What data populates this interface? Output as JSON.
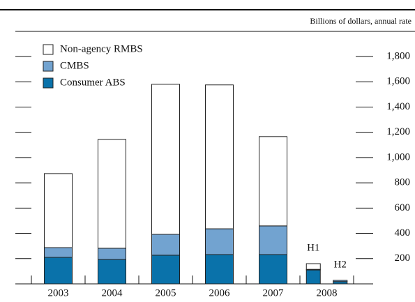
{
  "chart_data": {
    "type": "stacked_bar",
    "subtitle": "Billions of dollars, annual rate",
    "categories": [
      "2003",
      "2004",
      "2005",
      "2006",
      "2007",
      "H1",
      "H2"
    ],
    "x_group_label": "2008",
    "series": [
      {
        "name": "Non-agency RMBS",
        "color": "#ffffff",
        "values": [
          586,
          862,
          1188,
          1139,
          707,
          45,
          0
        ]
      },
      {
        "name": "CMBS",
        "color": "#72a3d0",
        "values": [
          77,
          89,
          165,
          204,
          227,
          5,
          10
        ]
      },
      {
        "name": "Consumer ABS",
        "color": "#0a72aa",
        "values": [
          210,
          193,
          227,
          232,
          232,
          110,
          18
        ]
      }
    ],
    "ylim": [
      0,
      1800
    ],
    "yticks": [
      {
        "value": 200,
        "label": "200"
      },
      {
        "value": 400,
        "label": "400"
      },
      {
        "value": 600,
        "label": "600"
      },
      {
        "value": 800,
        "label": "800"
      },
      {
        "value": 1000,
        "label": "1,000"
      },
      {
        "value": 1200,
        "label": "1,200"
      },
      {
        "value": 1400,
        "label": "1,400"
      },
      {
        "value": 1600,
        "label": "1,600"
      },
      {
        "value": 1800,
        "label": "1,800"
      }
    ]
  }
}
